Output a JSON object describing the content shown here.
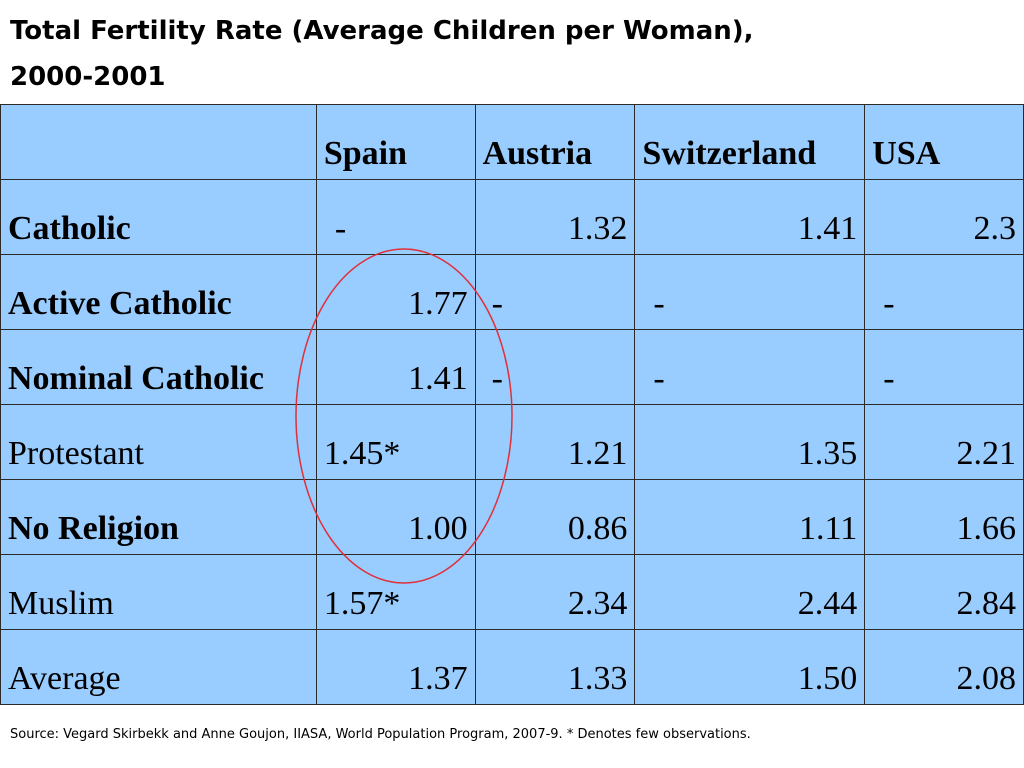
{
  "title_line1": "Total Fertility Rate (Average Children per Woman),",
  "title_line2": "2000-2001",
  "columns": [
    "",
    "Spain",
    "Austria",
    "Switzerland",
    "USA"
  ],
  "rows": [
    {
      "label": "Catholic",
      "bold": true,
      "values": [
        "-",
        "1.32",
        "1.41",
        "2.3"
      ]
    },
    {
      "label": "Active Catholic",
      "bold": true,
      "values": [
        "1.77",
        "-",
        "-",
        "-"
      ]
    },
    {
      "label": "Nominal Catholic",
      "bold": true,
      "values": [
        "1.41",
        "-",
        "-",
        "-"
      ]
    },
    {
      "label": "Protestant",
      "bold": false,
      "values": [
        "1.45*",
        "1.21",
        "1.35",
        "2.21"
      ]
    },
    {
      "label": "No Religion",
      "bold": true,
      "values": [
        "1.00",
        "0.86",
        "1.11",
        "1.66"
      ]
    },
    {
      "label": "Muslim",
      "bold": false,
      "values": [
        "1.57*",
        "2.34",
        "2.44",
        "2.84"
      ]
    },
    {
      "label": "Average",
      "bold": false,
      "values": [
        "1.37",
        "1.33",
        "1.50",
        "2.08"
      ]
    }
  ],
  "source": "Source: Vegard Skirbekk and Anne Goujon, IIASA, World Population Program, 2007-9. * Denotes few observations.",
  "colors": {
    "cell_bg": "#99ccff",
    "highlight_ellipse": "#e0303a"
  }
}
